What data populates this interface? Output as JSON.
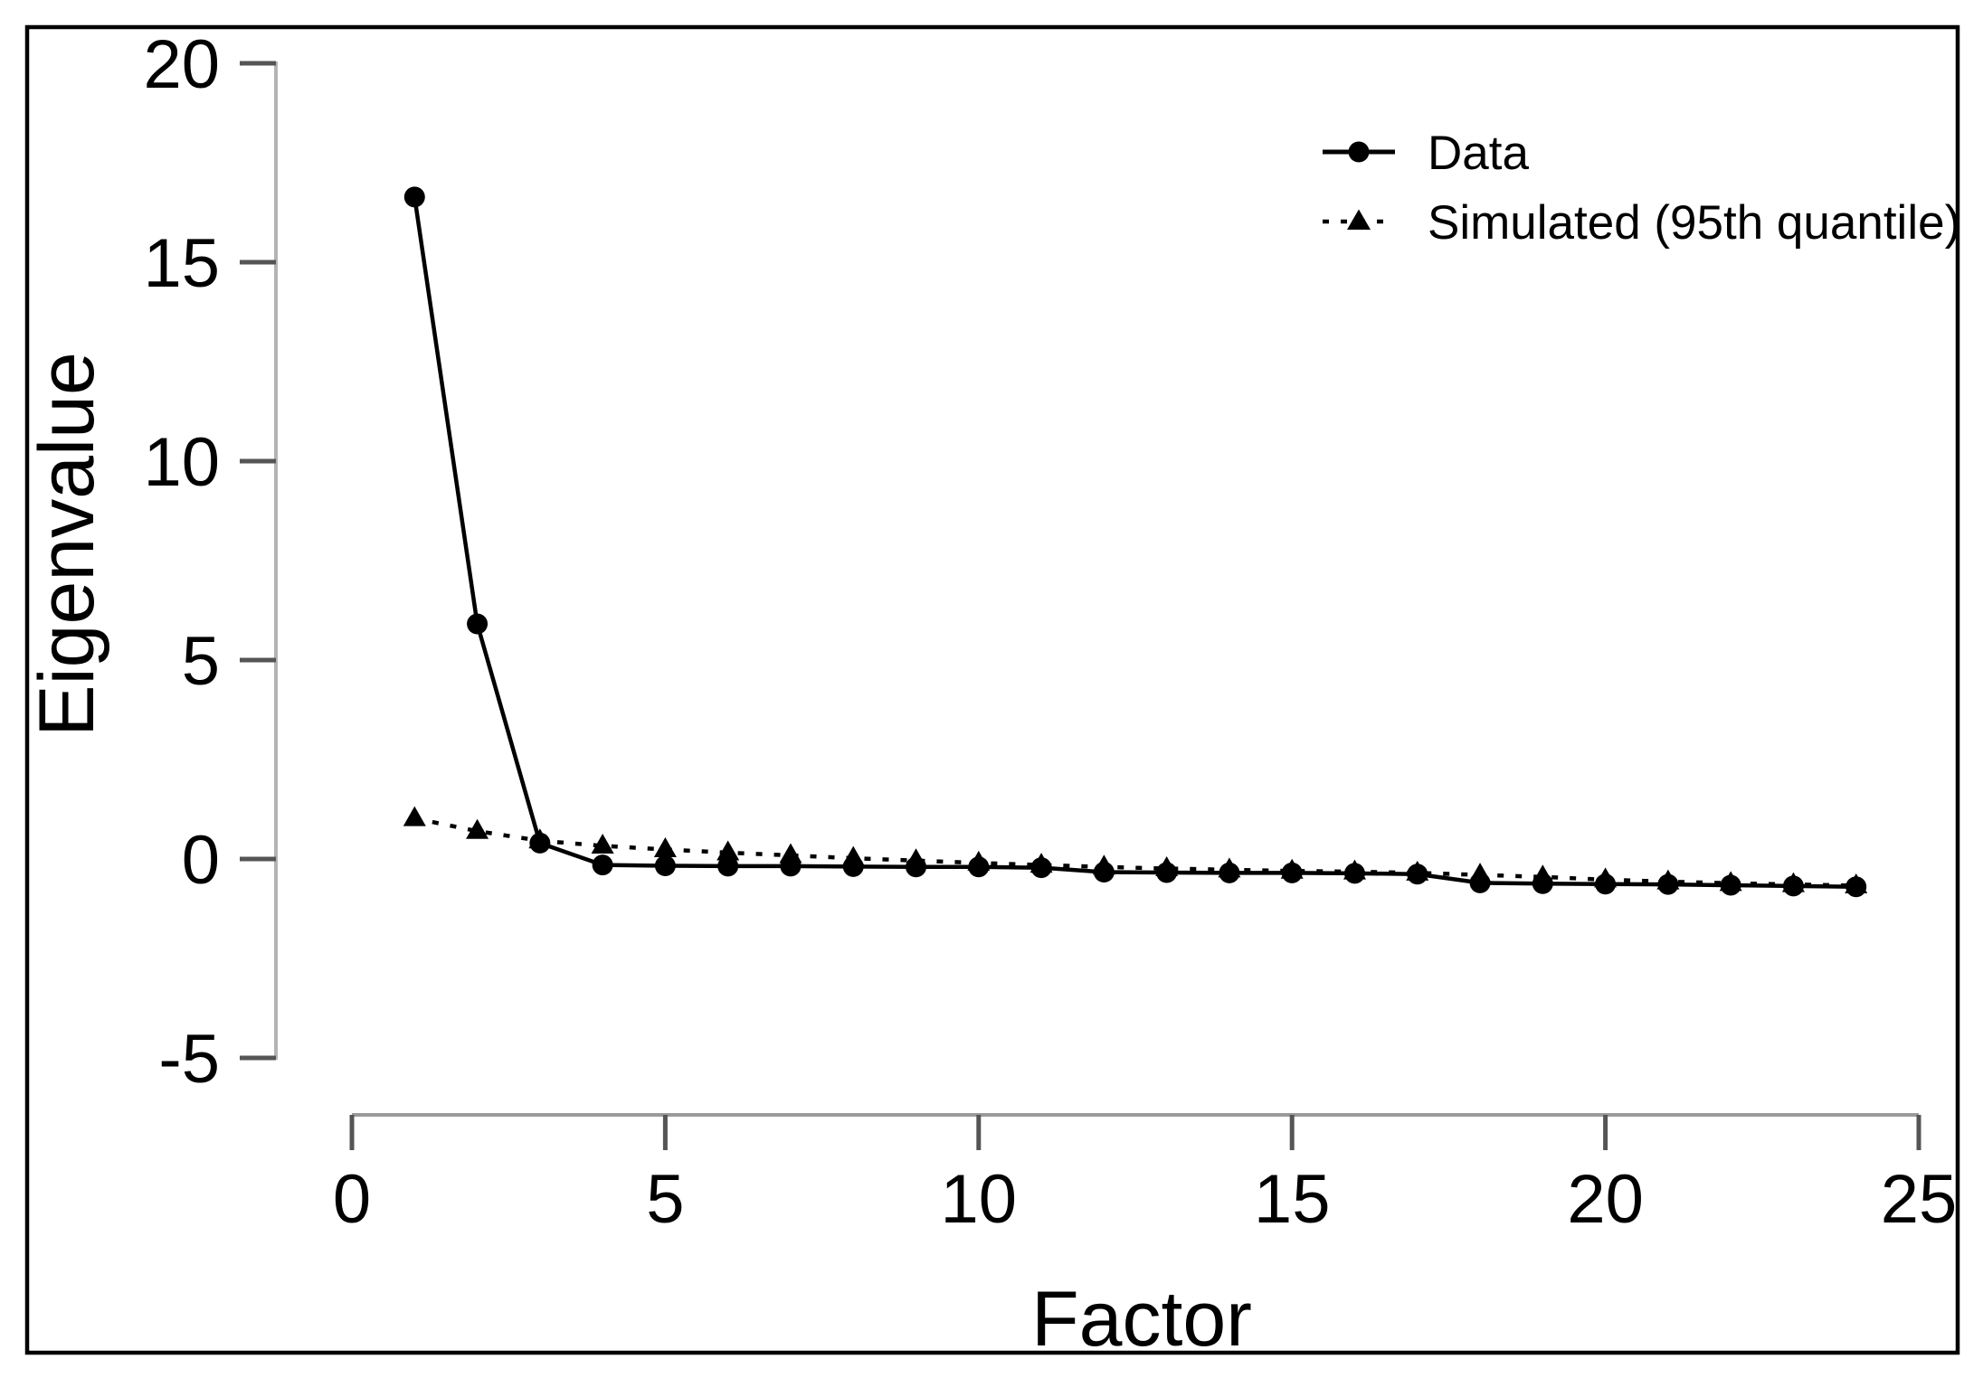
{
  "figure": {
    "background": "#ffffff",
    "frame_color": "#000000",
    "axis_line_color": "#a8a8a8",
    "tick_color": "#555555",
    "text_color": "#000000",
    "series_color": "#000000"
  },
  "chart_data": {
    "type": "line",
    "title": "",
    "xlabel": "Factor",
    "ylabel": "Eigenvalue",
    "xlim": [
      0,
      25
    ],
    "ylim": [
      -5,
      20
    ],
    "x_ticks": [
      0,
      5,
      10,
      15,
      20,
      25
    ],
    "y_ticks": [
      20,
      15,
      10,
      5,
      0,
      -5
    ],
    "grid": false,
    "legend_position": "top-right",
    "x": [
      1,
      2,
      3,
      4,
      5,
      6,
      7,
      8,
      9,
      10,
      11,
      12,
      13,
      14,
      15,
      16,
      17,
      18,
      19,
      20,
      21,
      22,
      23,
      24
    ],
    "series": [
      {
        "name": "Data",
        "marker": "circle",
        "line_style": "solid",
        "color": "#000000",
        "values": [
          16.64,
          5.91,
          0.4,
          -0.15,
          -0.17,
          -0.18,
          -0.18,
          -0.19,
          -0.2,
          -0.2,
          -0.22,
          -0.33,
          -0.34,
          -0.35,
          -0.35,
          -0.36,
          -0.38,
          -0.6,
          -0.62,
          -0.63,
          -0.64,
          -0.66,
          -0.68,
          -0.7
        ]
      },
      {
        "name": "Simulated (95th quantile)",
        "marker": "triangle",
        "line_style": "dotted",
        "color": "#000000",
        "values": [
          1.02,
          0.7,
          0.46,
          0.33,
          0.24,
          0.16,
          0.09,
          0.02,
          -0.04,
          -0.1,
          -0.15,
          -0.2,
          -0.24,
          -0.27,
          -0.3,
          -0.32,
          -0.35,
          -0.4,
          -0.45,
          -0.52,
          -0.57,
          -0.61,
          -0.64,
          -0.67
        ]
      }
    ]
  }
}
